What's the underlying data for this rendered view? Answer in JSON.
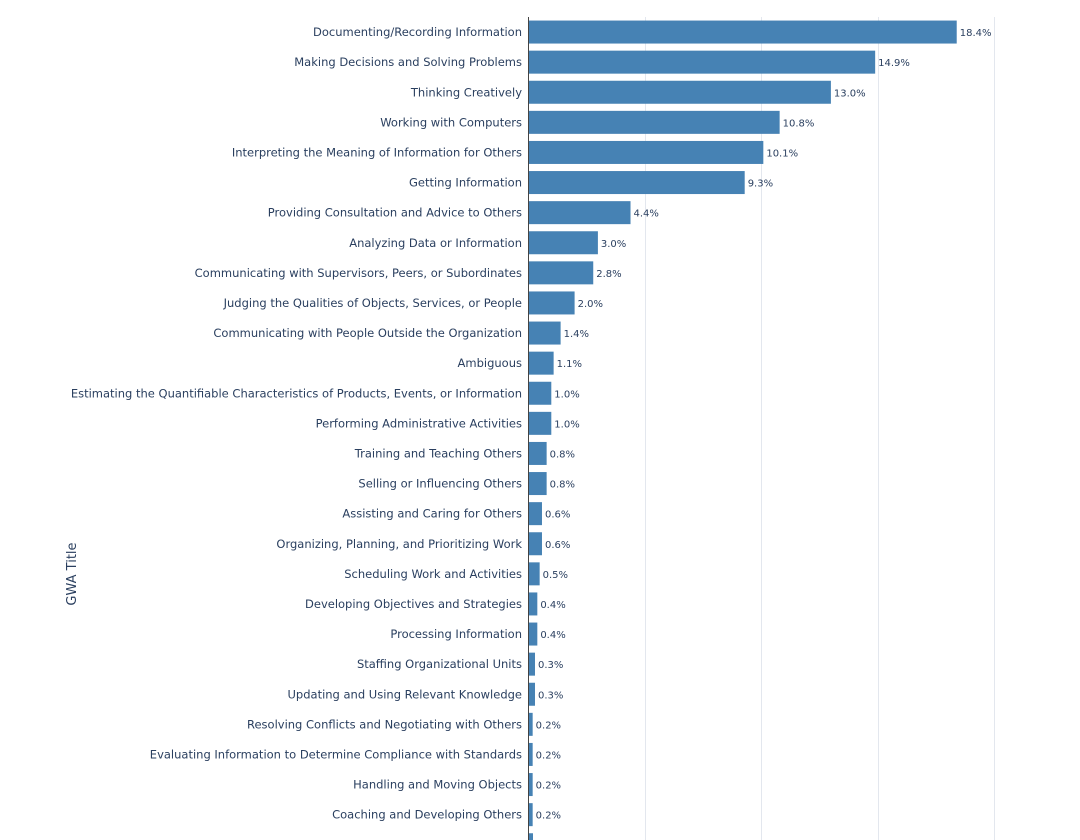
{
  "chart_data": {
    "type": "bar",
    "orientation": "horizontal",
    "ylabel": "GWA Title",
    "xlabel": "",
    "xlim": [
      0,
      20
    ],
    "x_grid_values": [
      5,
      10,
      15,
      20
    ],
    "bar_color": "#4682b4",
    "text_color": "#2a3f5f",
    "categories": [
      "Documenting/Recording Information",
      "Making Decisions and Solving Problems",
      "Thinking Creatively",
      "Working with Computers",
      "Interpreting the Meaning of Information for Others",
      "Getting Information",
      "Providing Consultation and Advice to Others",
      "Analyzing Data or Information",
      "Communicating with Supervisors, Peers, or Subordinates",
      "Judging the Qualities of Objects, Services, or People",
      "Communicating with People Outside the Organization",
      "Ambiguous",
      "Estimating the Quantifiable Characteristics of Products, Events, or Information",
      "Performing Administrative Activities",
      "Training and Teaching Others",
      "Selling or Influencing Others",
      "Assisting and Caring for Others",
      "Organizing, Planning, and Prioritizing Work",
      "Scheduling Work and Activities",
      "Developing Objectives and Strategies",
      "Processing Information",
      "Staffing Organizational Units",
      "Updating and Using Relevant Knowledge",
      "Resolving Conflicts and Negotiating with Others",
      "Evaluating Information to Determine Compliance with Standards",
      "Handling and Moving Objects",
      "Coaching and Developing Others"
    ],
    "values": [
      18.4,
      14.9,
      13.0,
      10.8,
      10.1,
      9.3,
      4.4,
      3.0,
      2.8,
      2.0,
      1.4,
      1.1,
      1.0,
      1.0,
      0.8,
      0.8,
      0.6,
      0.6,
      0.5,
      0.4,
      0.4,
      0.3,
      0.3,
      0.2,
      0.2,
      0.2,
      0.2
    ],
    "value_labels": [
      "18.4%",
      "14.9%",
      "13.0%",
      "10.8%",
      "10.1%",
      "9.3%",
      "4.4%",
      "3.0%",
      "2.8%",
      "2.0%",
      "1.4%",
      "1.1%",
      "1.0%",
      "1.0%",
      "0.8%",
      "0.8%",
      "0.6%",
      "0.6%",
      "0.5%",
      "0.4%",
      "0.4%",
      "0.3%",
      "0.3%",
      "0.2%",
      "0.2%",
      "0.2%",
      "0.2%"
    ]
  }
}
